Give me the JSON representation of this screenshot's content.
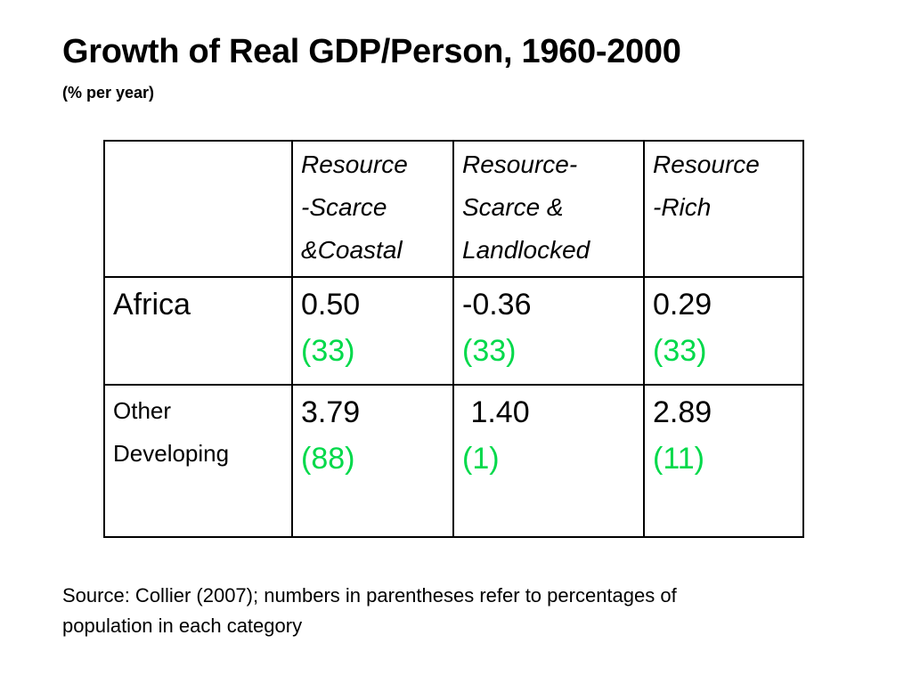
{
  "title": "Growth of Real GDP/Person, 1960-2000",
  "subtitle": "(% per year)",
  "colors": {
    "percentage_text": "#00d94a",
    "border": "#000000"
  },
  "table": {
    "headers": [
      "",
      "Resource\n-Scarce\n&Coastal",
      "Resource-\nScarce &\nLandlocked",
      "Resource\n-Rich"
    ],
    "rows": [
      {
        "label": "Africa",
        "cells": [
          {
            "value": "0.50",
            "pct": "(33)"
          },
          {
            "value": "-0.36",
            "pct": "(33)"
          },
          {
            "value": "0.29",
            "pct": "(33)"
          }
        ]
      },
      {
        "label": "Other\nDeveloping",
        "cells": [
          {
            "value": "3.79",
            "pct": "(88)"
          },
          {
            "value": " 1.40",
            "pct": "(1)"
          },
          {
            "value": "2.89",
            "pct": "(11)"
          }
        ]
      }
    ]
  },
  "source": "Source: Collier (2007); numbers in parentheses refer to percentages of population in each category"
}
